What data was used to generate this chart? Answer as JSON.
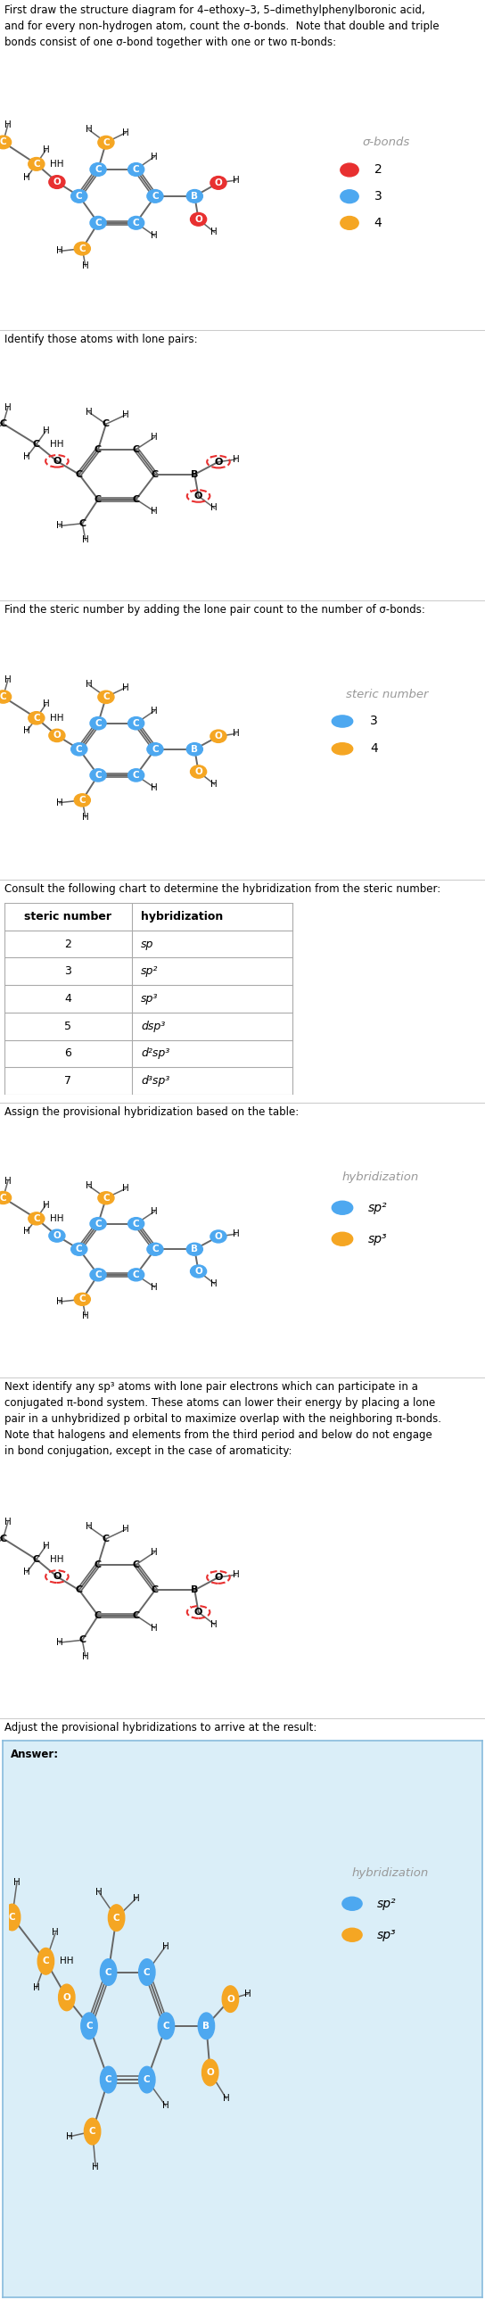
{
  "title_text_1": "First draw the structure diagram for 4–ethoxy–3, 5–dimethylphenylboronic acid,\nand for every non-hydrogen atom, count the σ-bonds.  Note that double and triple\nbonds consist of one σ-bond together with one or two π-bonds:",
  "title_text_2": "Identify those atoms with lone pairs:",
  "title_text_3": "Find the steric number by adding the lone pair count to the number of σ-bonds:",
  "title_text_4": "Consult the following chart to determine the hybridization from the steric number:",
  "title_text_5": "Assign the provisional hybridization based on the table:",
  "title_text_6": "Next identify any sp³ atoms with lone pair electrons which can participate in a\nconjugated π-bond system. These atoms can lower their energy by placing a lone\npair in a unhybridized p orbital to maximize overlap with the neighboring π-bonds.\nNote that halogens and elements from the third period and below do not engage\nin bond conjugation, except in the case of aromaticity:",
  "title_text_7": "Adjust the provisional hybridizations to arrive at the result:",
  "answer_label": "Answer:",
  "color_red": "#e83030",
  "color_blue": "#4da8f0",
  "color_orange": "#f5a623",
  "color_gray": "#999999",
  "bg_answer": "#daeef8",
  "table_data": [
    [
      "steric number",
      "hybridization"
    ],
    [
      "2",
      "sp"
    ],
    [
      "3",
      "sp²"
    ],
    [
      "4",
      "sp³"
    ],
    [
      "5",
      "dsp³"
    ],
    [
      "6",
      "d²sp³"
    ],
    [
      "7",
      "d³sp³"
    ]
  ]
}
